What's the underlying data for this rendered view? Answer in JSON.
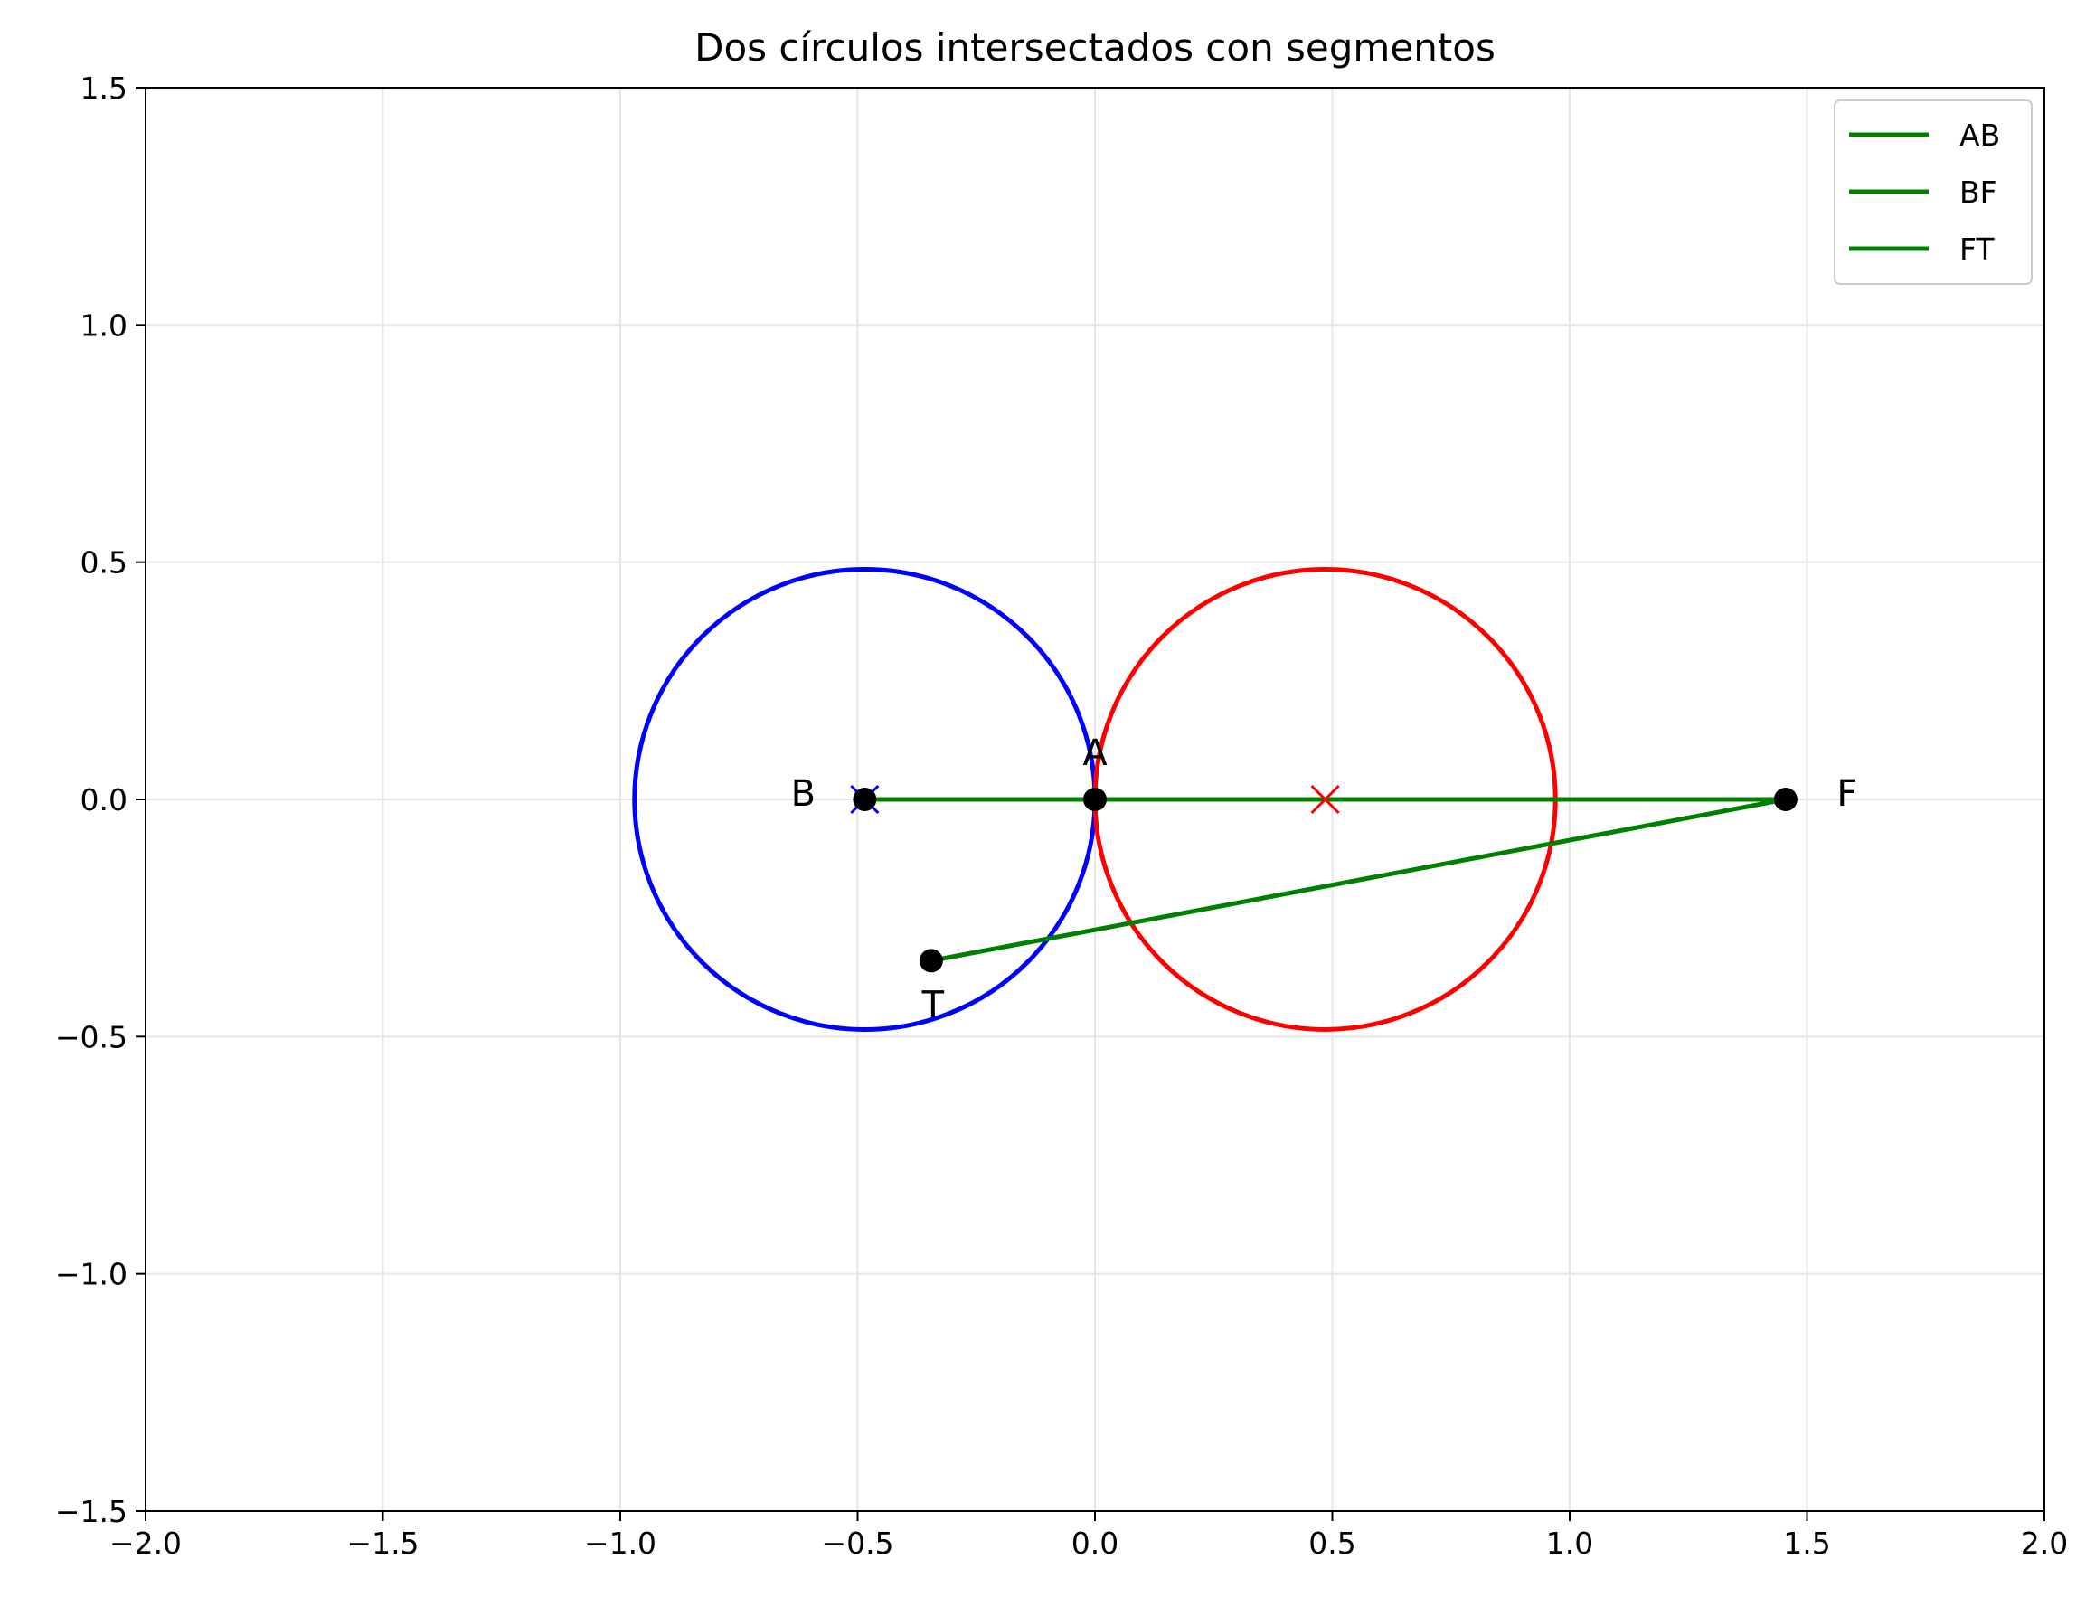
{
  "chart_data": {
    "type": "scatter",
    "title": "Dos círculos intersectados con segmentos",
    "xlabel": "",
    "ylabel": "",
    "xlim": [
      -2.0,
      2.0
    ],
    "ylim": [
      -1.5,
      1.5
    ],
    "grid": true,
    "legend_position": "top-right",
    "x_ticks": [
      "−2.0",
      "−1.5",
      "−1.0",
      "−0.5",
      "0.0",
      "0.5",
      "1.0",
      "1.5",
      "2.0"
    ],
    "y_ticks": [
      "−1.5",
      "−1.0",
      "−0.5",
      "0.0",
      "0.5",
      "1.0",
      "1.5"
    ],
    "x_tick_values": [
      -2.0,
      -1.5,
      -1.0,
      -0.5,
      0.0,
      0.5,
      1.0,
      1.5,
      2.0
    ],
    "y_tick_values": [
      -1.5,
      -1.0,
      -0.5,
      0.0,
      0.5,
      1.0,
      1.5
    ],
    "circles": [
      {
        "center": [
          -0.485,
          0.0
        ],
        "radius": 0.485,
        "color": "#0000ff"
      },
      {
        "center": [
          0.485,
          0.0
        ],
        "radius": 0.485,
        "color": "#ff0000"
      }
    ],
    "points": [
      {
        "label": "A",
        "x": 0.0,
        "y": 0.0
      },
      {
        "label": "B",
        "x": -0.485,
        "y": 0.0
      },
      {
        "label": "F",
        "x": 1.455,
        "y": 0.0
      },
      {
        "label": "T",
        "x": -0.345,
        "y": -0.34
      }
    ],
    "segments": [
      {
        "name": "AB",
        "from": [
          0.0,
          0.0
        ],
        "to": [
          -0.485,
          0.0
        ],
        "color": "#008000"
      },
      {
        "name": "BF",
        "from": [
          -0.485,
          0.0
        ],
        "to": [
          1.455,
          0.0
        ],
        "color": "#008000"
      },
      {
        "name": "FT",
        "from": [
          1.455,
          0.0
        ],
        "to": [
          -0.345,
          -0.34
        ],
        "color": "#008000"
      }
    ],
    "colors": {
      "segment": "#008000",
      "point": "#000000",
      "grid": "#e6e6e6"
    }
  }
}
